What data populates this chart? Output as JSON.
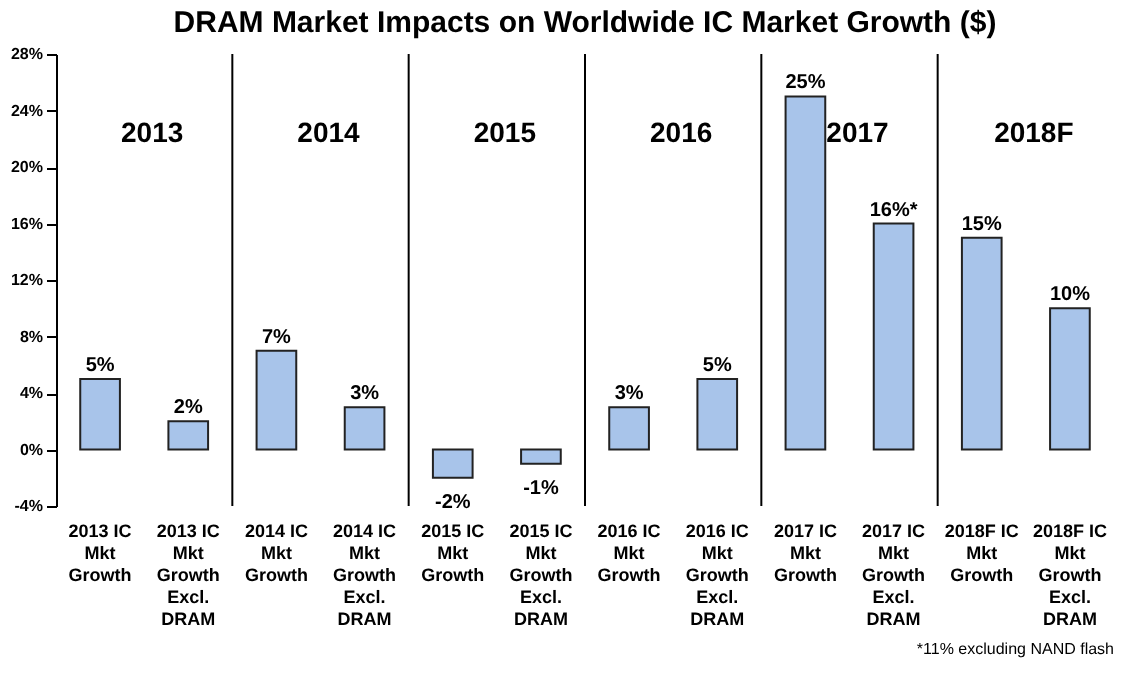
{
  "chart_data": {
    "type": "bar",
    "title": "DRAM Market Impacts on Worldwide IC Market Growth ($)",
    "categories": [
      "2013 IC Mkt Growth",
      "2013 IC Mkt Growth Excl. DRAM",
      "2014 IC Mkt Growth",
      "2014 IC Mkt Growth Excl. DRAM",
      "2015 IC Mkt Growth",
      "2015 IC Mkt Growth Excl. DRAM",
      "2016 IC Mkt Growth",
      "2016 IC Mkt Growth Excl. DRAM",
      "2017 IC Mkt Growth",
      "2017 IC Mkt Growth Excl. DRAM",
      "2018F IC Mkt Growth",
      "2018F IC Mkt Growth Excl. DRAM"
    ],
    "values": [
      5,
      2,
      7,
      3,
      -2,
      -1,
      3,
      5,
      25,
      16,
      15,
      10
    ],
    "value_labels": [
      "5%",
      "2%",
      "7%",
      "3%",
      "-2%",
      "-1%",
      "3%",
      "5%",
      "25%",
      "16%*",
      "15%",
      "10%"
    ],
    "color": "#a8c4ea",
    "ylim": [
      -4,
      28
    ],
    "yticks": [
      {
        "value": -4,
        "label": "-4%"
      },
      {
        "value": 0,
        "label": "0%"
      },
      {
        "value": 4,
        "label": "4%"
      },
      {
        "value": 8,
        "label": "8%"
      },
      {
        "value": 12,
        "label": "12%"
      },
      {
        "value": 16,
        "label": "16%"
      },
      {
        "value": 20,
        "label": "20%"
      },
      {
        "value": 24,
        "label": "24%"
      },
      {
        "value": 28,
        "label": "28%"
      }
    ],
    "grid": false,
    "annotations": [
      "2013",
      "2014",
      "2015",
      "2016",
      "2017",
      "2018F",
      "*11% excluding NAND flash"
    ]
  }
}
